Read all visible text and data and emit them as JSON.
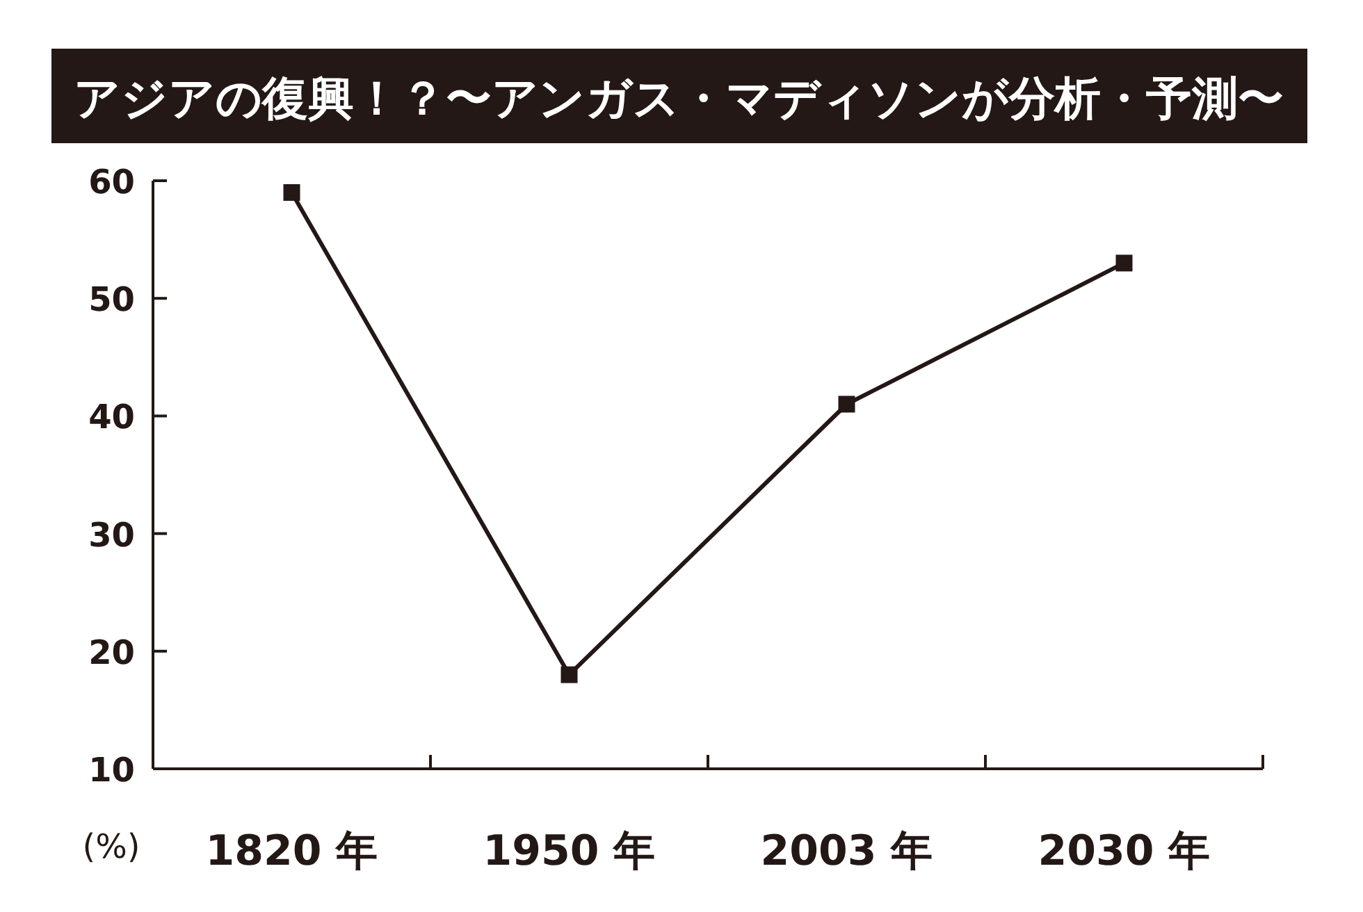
{
  "chart_data": {
    "type": "line",
    "title": "アジアの復興！？〜アンガス・マディソンが分析・予測〜",
    "ylabel": "(%)",
    "categories": [
      "1820 年",
      "1950 年",
      "2003 年",
      "2030 年"
    ],
    "series": [
      {
        "color": "#231815",
        "values": [
          59,
          18,
          41,
          53
        ]
      }
    ],
    "ylim": [
      10,
      60
    ],
    "yticks": [
      10,
      20,
      30,
      40,
      50,
      60
    ],
    "marker": "square",
    "line_style": "solid"
  }
}
